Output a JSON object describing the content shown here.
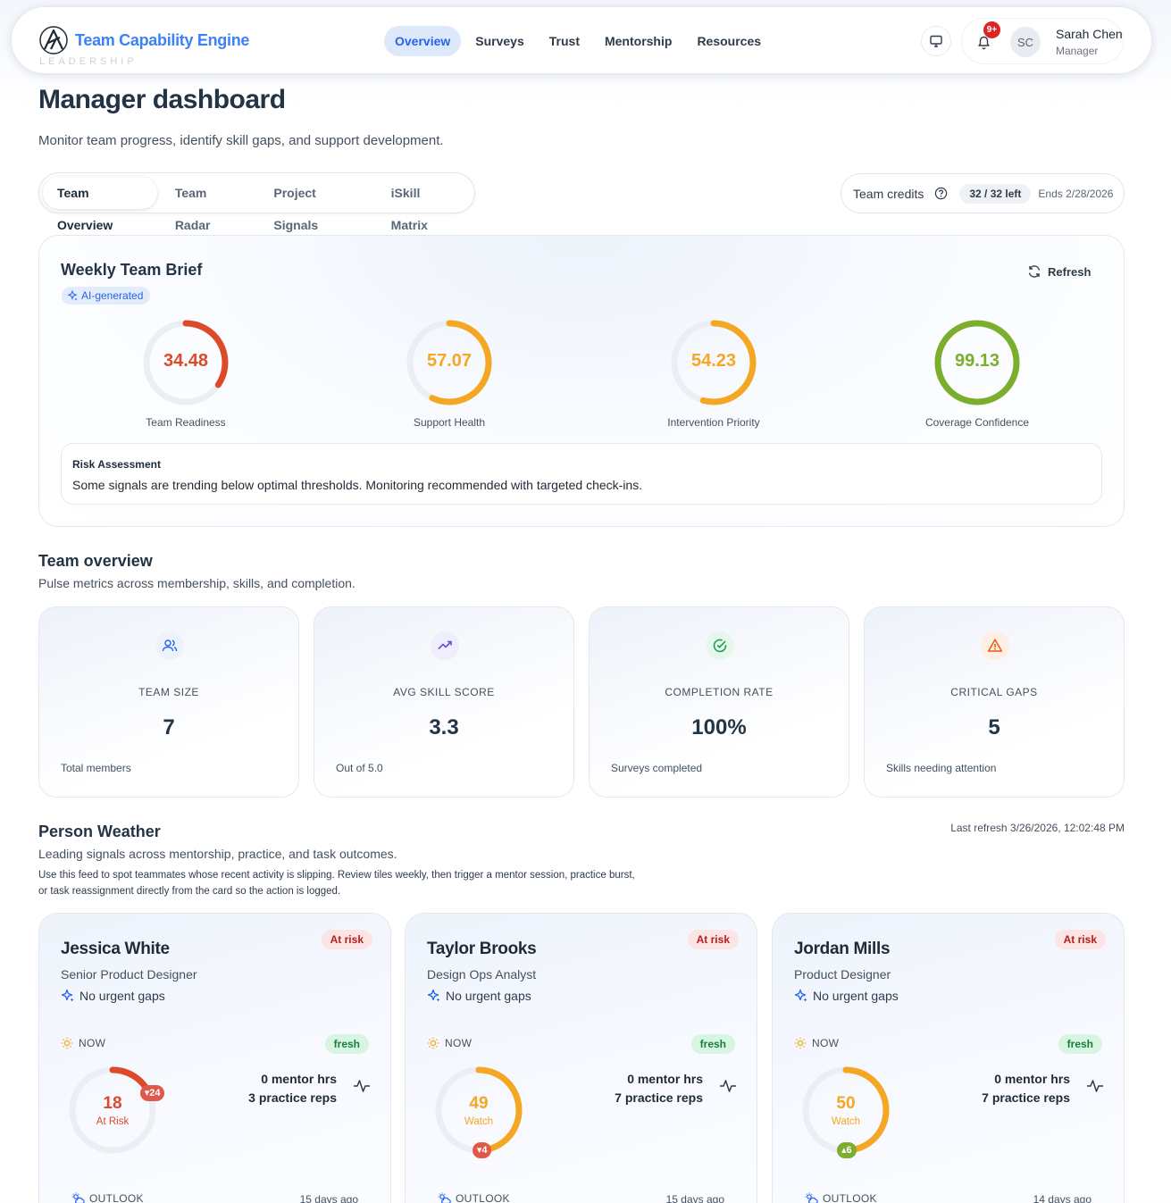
{
  "app": {
    "brand": "Team Capability Engine",
    "brand_sub": "LEADERSHIP",
    "nav": [
      "Overview",
      "Surveys",
      "Trust",
      "Mentorship",
      "Resources"
    ],
    "notification_badge": "9+",
    "user": {
      "initials": "SC",
      "name": "Sarah Chen",
      "role": "Manager"
    }
  },
  "page": {
    "title": "Manager dashboard",
    "subtitle": "Monitor team progress, identify skill gaps, and support development."
  },
  "tabs": [
    "Team Overview",
    "Team Radar",
    "Project Signals",
    "iSkill Matrix"
  ],
  "credits": {
    "label": "Team credits",
    "pill": "32 / 32 left",
    "ends": "Ends 2/28/2026"
  },
  "brief": {
    "title": "Weekly Team Brief",
    "badge": "AI-generated",
    "refresh": "Refresh",
    "gauges": [
      {
        "value": "34.48",
        "percent": 34.48,
        "label": "Team Readiness",
        "color": "#dc4a2a"
      },
      {
        "value": "57.07",
        "percent": 57.07,
        "label": "Support Health",
        "color": "#f5a623"
      },
      {
        "value": "54.23",
        "percent": 54.23,
        "label": "Intervention Priority",
        "color": "#f5a623"
      },
      {
        "value": "99.13",
        "percent": 99.13,
        "label": "Coverage Confidence",
        "color": "#7cae2e"
      }
    ],
    "risk_title": "Risk Assessment",
    "risk_text": "Some signals are trending below optimal thresholds. Monitoring recommended with targeted check-ins."
  },
  "overview": {
    "title": "Team overview",
    "subtitle": "Pulse metrics across membership, skills, and completion.",
    "cards": [
      {
        "label": "TEAM SIZE",
        "value": "7",
        "note": "Total members",
        "icon": "users-icon",
        "icon_color": "#2563eb",
        "icon_bg": "#eef3fb"
      },
      {
        "label": "AVG SKILL SCORE",
        "value": "3.3",
        "note": "Out of 5.0",
        "icon": "trending-up-icon",
        "icon_color": "#6d4fd6",
        "icon_bg": "#eeeefc"
      },
      {
        "label": "COMPLETION RATE",
        "value": "100%",
        "note": "Surveys completed",
        "icon": "check-circle-icon",
        "icon_color": "#16a34a",
        "icon_bg": "#e6f7ec"
      },
      {
        "label": "CRITICAL GAPS",
        "value": "5",
        "note": "Skills needing attention",
        "icon": "warning-icon",
        "icon_color": "#ea580c",
        "icon_bg": "#fdefe3"
      }
    ]
  },
  "weather": {
    "title": "Person Weather",
    "subtitle": "Leading signals across mentorship, practice, and task outcomes.",
    "last_refresh": "Last refresh 3/26/2026, 12:02:48 PM",
    "note": "Use this feed to spot teammates whose recent activity is slipping. Review tiles weekly, then trigger a mentor session, practice burst, or task reassignment directly from the card so the action is logged.",
    "people": [
      {
        "name": "Jessica White",
        "role": "Senior Product Designer",
        "gaps": "No urgent gaps",
        "risk": "At risk",
        "now": "NOW",
        "fresh": "fresh",
        "score": "18",
        "percent": 18,
        "status": "At Risk",
        "color": "#dc4a2a",
        "delta": "▾24",
        "delta_color": "#e0584a",
        "mentor": "0 mentor hrs",
        "practice": "3 practice reps",
        "outlook": "OUTLOOK",
        "ago": "15 days ago"
      },
      {
        "name": "Taylor Brooks",
        "role": "Design Ops Analyst",
        "gaps": "No urgent gaps",
        "risk": "At risk",
        "now": "NOW",
        "fresh": "fresh",
        "score": "49",
        "percent": 49,
        "status": "Watch",
        "color": "#f5a623",
        "delta": "▾4",
        "delta_color": "#e0584a",
        "mentor": "0 mentor hrs",
        "practice": "7 practice reps",
        "outlook": "OUTLOOK",
        "ago": "15 days ago"
      },
      {
        "name": "Jordan Mills",
        "role": "Product Designer",
        "gaps": "No urgent gaps",
        "risk": "At risk",
        "now": "NOW",
        "fresh": "fresh",
        "score": "50",
        "percent": 50,
        "status": "Watch",
        "color": "#f5a623",
        "delta": "▴6",
        "delta_color": "#7cae2e",
        "mentor": "0 mentor hrs",
        "practice": "7 practice reps",
        "outlook": "OUTLOOK",
        "ago": "14 days ago"
      }
    ]
  }
}
